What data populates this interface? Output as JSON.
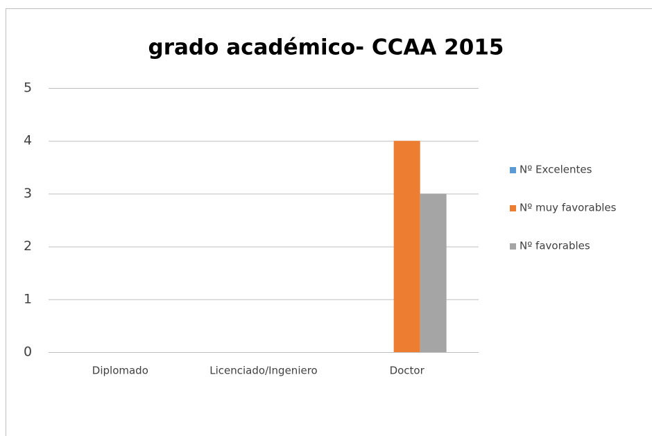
{
  "chart_data": {
    "type": "bar",
    "title": "grado académico- CCAA 2015",
    "categories": [
      "Diplomado",
      "Licenciado/Ingeniero",
      "Doctor"
    ],
    "series": [
      {
        "name": "Nº Excelentes",
        "color": "#5b9bd5",
        "values": [
          0,
          0,
          0
        ]
      },
      {
        "name": "Nº muy favorables",
        "color": "#ed7d31",
        "values": [
          0,
          0,
          4
        ]
      },
      {
        "name": "Nº favorables",
        "color": "#a5a5a5",
        "values": [
          0,
          0,
          3
        ]
      }
    ],
    "ylim": [
      0,
      5
    ],
    "yticks": [
      0,
      1,
      2,
      3,
      4,
      5
    ],
    "grid": true,
    "legend": "right"
  }
}
